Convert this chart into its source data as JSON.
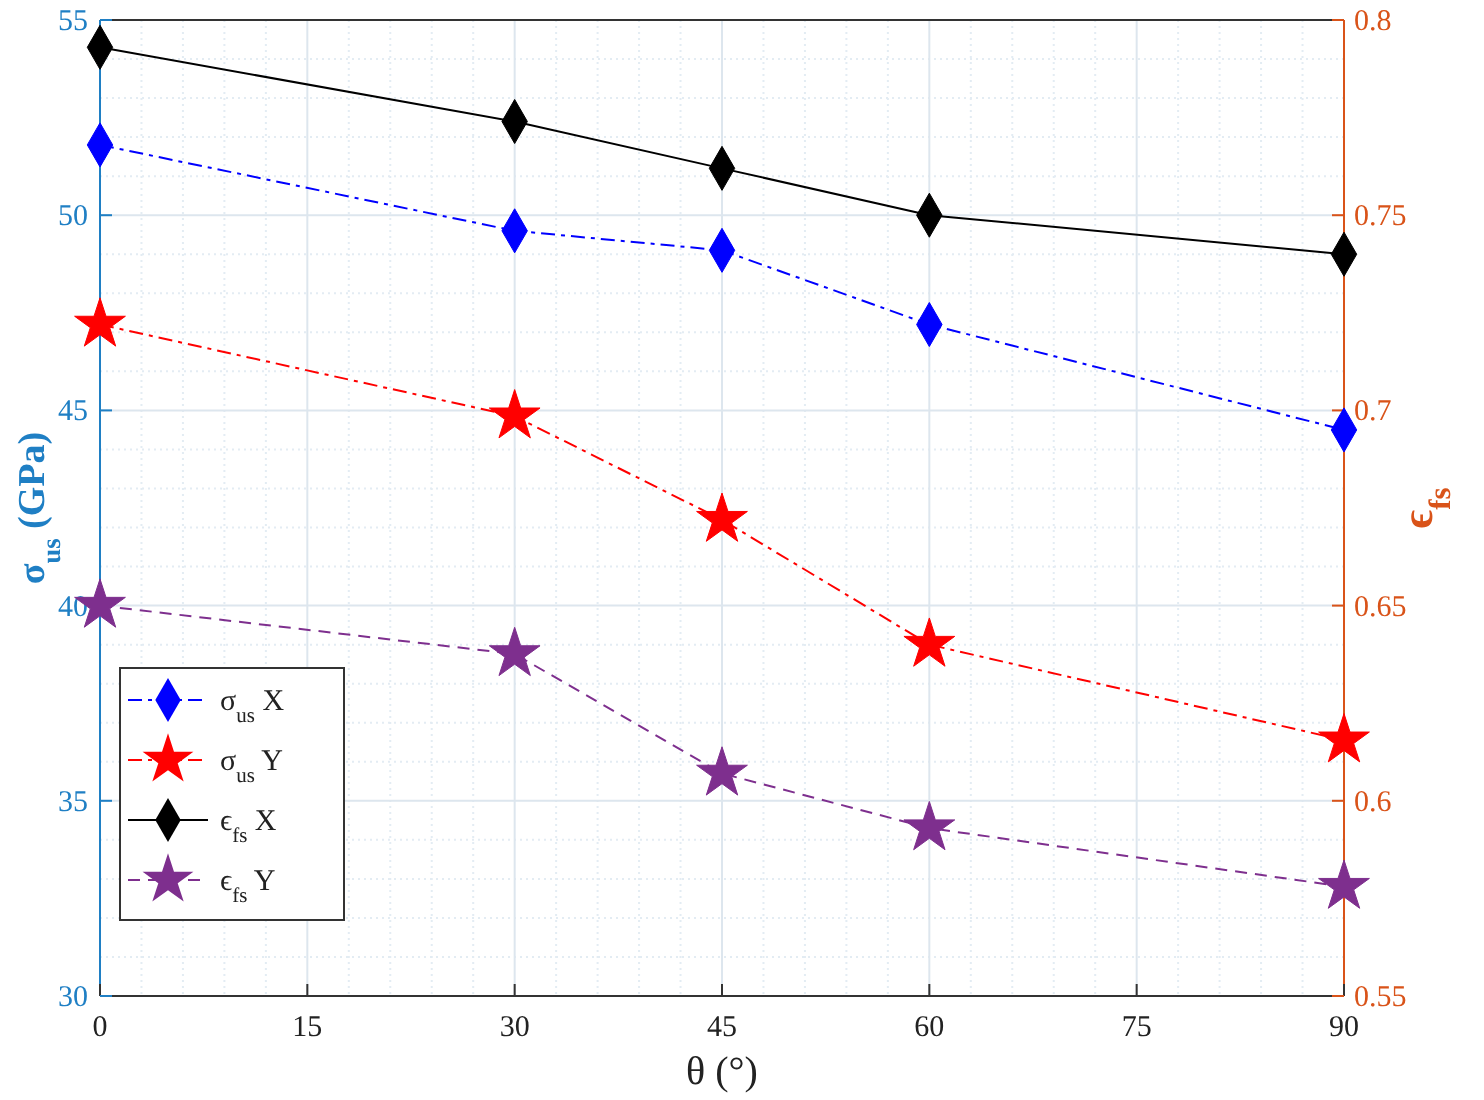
{
  "chart_data": {
    "type": "line",
    "xlabel": "θ (°)",
    "ylabel": "σ$_{us}$ (GPa)",
    "y2label": "ϵ$_{fs}$",
    "x": [
      0,
      30,
      45,
      60,
      90
    ],
    "xlim": [
      0,
      90
    ],
    "xticks": [
      0,
      15,
      30,
      45,
      60,
      75,
      90
    ],
    "ylim": [
      30,
      55
    ],
    "yticks": [
      30,
      35,
      40,
      45,
      50,
      55
    ],
    "y2lim": [
      0.55,
      0.8
    ],
    "y2ticks": [
      0.55,
      0.6,
      0.65,
      0.7,
      0.75,
      0.8
    ],
    "grid": true,
    "legend": "bottom left",
    "series": [
      {
        "name": "σ$_{us}$ X",
        "color": "#0000ff",
        "marker": "diamond",
        "line_style": "dashdot",
        "values": [
          51.8,
          49.6,
          49.1,
          47.2,
          44.5
        ]
      },
      {
        "name": "σ$_{us}$ Y",
        "color": "#ff0000",
        "marker": "star",
        "line_style": "dashdot",
        "values": [
          47.2,
          44.85,
          42.2,
          39.0,
          36.55
        ]
      },
      {
        "name": "ϵ$_{fs}$ X",
        "color": "#000000",
        "marker": "diamond",
        "line_style": "solid",
        "axis": "y2",
        "values": [
          0.793,
          0.774,
          0.762,
          0.75,
          0.74
        ]
      },
      {
        "name": "ϵ$_{fs}$ Y",
        "color": "#7e2f8e",
        "marker": "star",
        "line_style": "dashed",
        "axis": "y2",
        "values": [
          0.65,
          0.6376,
          0.607,
          0.593,
          0.578
        ]
      }
    ]
  }
}
